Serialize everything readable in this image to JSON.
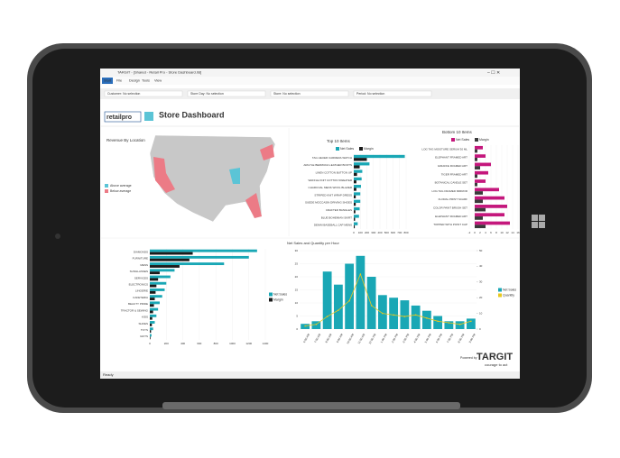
{
  "window": {
    "title": "TARGIT - [Shared - Retail Pro - Store Dashboard.itd]",
    "menu": [
      "Start",
      "File",
      "Design",
      "Tools",
      "View"
    ],
    "filters": [
      "Customer: No selection",
      "Store Day: No selection",
      "Store: No selection",
      "Period: No selection"
    ],
    "status": "Ready"
  },
  "dashboard": {
    "logo": "retailpro",
    "title": "Store Dashboard",
    "powered_by": "Powered by",
    "brand": "TARGIT",
    "tagline": "courage to act"
  },
  "map": {
    "title": "Revenue By Location",
    "legend": [
      {
        "name": "Above average",
        "color": "#5bc4d6"
      },
      {
        "name": "Below average",
        "color": "#ec7b86"
      }
    ]
  },
  "chart_data": [
    {
      "type": "hbar",
      "title": "Top 10 Items",
      "legend": "top",
      "categories": [
        "TAG HEUER CARRERA WATCH",
        "ARGYLE BERMUDA LEATHER BOOTS",
        "LINEN COTTON BUTTON UP",
        "WAFFLE KNIT COTTON SWEATER",
        "CHARCOAL MENS WOOL BLAZER",
        "STRIPED KNIT WRAP DRESS",
        "SUEDE MOCCASIN DRIVING SHOES",
        "CRAFTED BANGLES",
        "BLUE BOHEMIAN SKIRT",
        "DENIM BASEBALL CAP MENS"
      ],
      "series": [
        {
          "name": "Net Sales",
          "color": "#19a7b5",
          "values": [
            780,
            240,
            130,
            120,
            110,
            100,
            100,
            90,
            80,
            60
          ]
        },
        {
          "name": "Margin",
          "color": "#1a1a1a",
          "values": [
            200,
            90,
            50,
            40,
            40,
            30,
            30,
            25,
            20,
            15
          ]
        }
      ],
      "xlim": [
        0,
        800
      ],
      "xticks": [
        0,
        100,
        200,
        300,
        400,
        500,
        600,
        700,
        800
      ]
    },
    {
      "type": "hbar",
      "title": "Bottom 10 Items",
      "legend": "top",
      "categories": [
        "LOG TAG MOISTURE SERUM 30 ML",
        "ELEPHANT FRAMED ART",
        "GIRAFFE FRAMED ART",
        "TIGER FRAMED ART",
        "BOTANICAL CANDLE SET",
        "LOG TAG FRAMED MIRROR",
        "FLORAL PRINT SCARF",
        "COLOR PAINT BRUSH SET",
        "ELEPHANT FRAMED ART",
        "TOPPER WITH POINT CAP"
      ],
      "series": [
        {
          "name": "Net Sales",
          "color": "#c4177c",
          "values": [
            3,
            4,
            6,
            5,
            4,
            9,
            11,
            12,
            11,
            13
          ]
        },
        {
          "name": "Margin",
          "color": "#3a3a3a",
          "values": [
            1,
            1,
            2,
            1,
            1,
            3,
            3,
            4,
            3,
            4
          ]
        }
      ],
      "xlim": [
        -2,
        16
      ],
      "xticks": [
        -2,
        0,
        2,
        4,
        6,
        8,
        10,
        12,
        14,
        16
      ]
    },
    {
      "type": "hbar",
      "legend": "right",
      "categories": [
        "DIAMONDS",
        "FURNITURE",
        "MENS",
        "SUNGLASSES",
        "SERVICES",
        "ELECTRONICS",
        "LINGERIE",
        "CAFETERIA",
        "BEAUTY PRIDE",
        "TRACTOR & SEWING",
        "KIDS",
        "SHOES",
        "TOYS",
        "GIFTS"
      ],
      "series": [
        {
          "name": "Net Sales",
          "color": "#19a7b5",
          "values": [
            1300,
            1200,
            900,
            300,
            250,
            200,
            180,
            150,
            120,
            100,
            80,
            60,
            40,
            20
          ]
        },
        {
          "name": "Margin",
          "color": "#1a1a1a",
          "values": [
            520,
            480,
            360,
            120,
            100,
            80,
            70,
            60,
            50,
            40,
            30,
            25,
            15,
            8
          ]
        }
      ],
      "xlim": [
        0,
        1400
      ],
      "xticks": [
        0,
        200,
        400,
        600,
        800,
        1000,
        1200,
        1400
      ]
    },
    {
      "type": "combo",
      "title": "Net Sales and Quantity per Hour",
      "legend": "right",
      "categories": [
        "6:00 AM",
        "7:00 AM",
        "8:00 AM",
        "9:00 AM",
        "10:00 AM",
        "11:00 AM",
        "12:00 PM",
        "1:00 PM",
        "2:00 PM",
        "3:00 PM",
        "4:00 PM",
        "5:00 PM",
        "6:00 PM",
        "7:00 PM",
        "8:00 PM",
        "9:00 PM"
      ],
      "series": [
        {
          "name": "Net Sales",
          "color": "#19a7b5",
          "values": [
            2,
            3,
            22,
            17,
            25,
            28,
            20,
            13,
            12,
            11,
            9,
            7,
            5,
            3,
            3,
            4
          ]
        },
        {
          "name": "Quantity",
          "color": "#e8c81e",
          "axis": "y2",
          "values": [
            2,
            3,
            8,
            12,
            18,
            35,
            15,
            10,
            9,
            8,
            9,
            7,
            5,
            4,
            3,
            5
          ]
        }
      ],
      "ylim": [
        0,
        30
      ],
      "yticks": [
        0,
        5,
        10,
        15,
        20,
        25,
        30
      ],
      "y2lim": [
        0,
        50
      ],
      "y2ticks": [
        0,
        10,
        20,
        30,
        40,
        50
      ]
    }
  ]
}
